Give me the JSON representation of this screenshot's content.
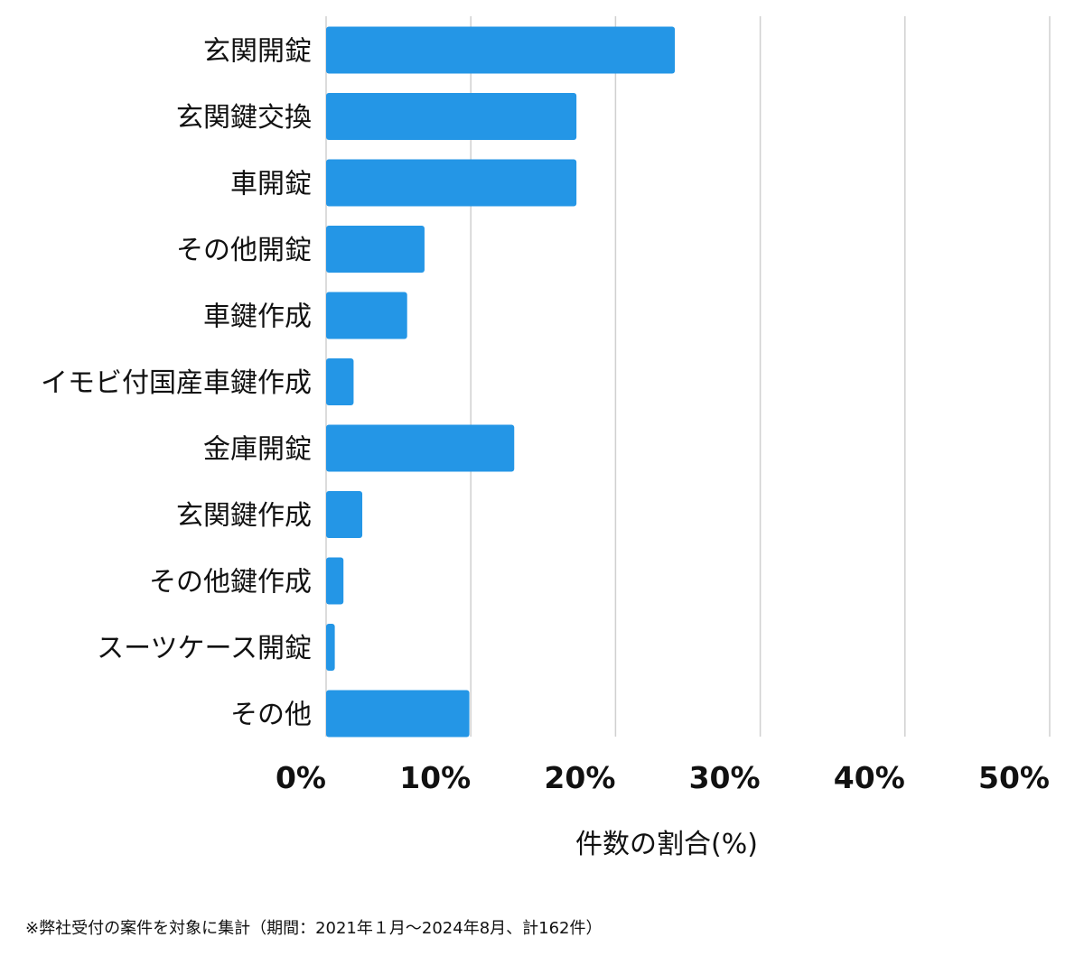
{
  "chart_data": {
    "type": "bar",
    "orientation": "horizontal",
    "categories": [
      "玄関開錠",
      "玄関鍵交換",
      "車開錠",
      "その他開錠",
      "車鍵作成",
      "イモビ付国産車鍵作成",
      "金庫開錠",
      "玄関鍵作成",
      "その他鍵作成",
      "スーツケース開錠",
      "その他"
    ],
    "values": [
      24.1,
      17.3,
      17.3,
      6.8,
      5.6,
      1.9,
      13.0,
      2.5,
      1.2,
      0.6,
      9.9
    ],
    "xlim": [
      0,
      50
    ],
    "xticks": [
      0,
      10,
      20,
      30,
      40,
      50
    ],
    "xtick_labels": [
      "0%",
      "10%",
      "20%",
      "30%",
      "40%",
      "50%"
    ],
    "xlabel": "件数の割合(%)",
    "grid": "vertical",
    "bar_color": "#2496e6",
    "grid_color": "#d0d0d0"
  },
  "footnote": "※弊社受付の案件を対象に集計（期間：2021年１月〜2024年8月、計162件）"
}
